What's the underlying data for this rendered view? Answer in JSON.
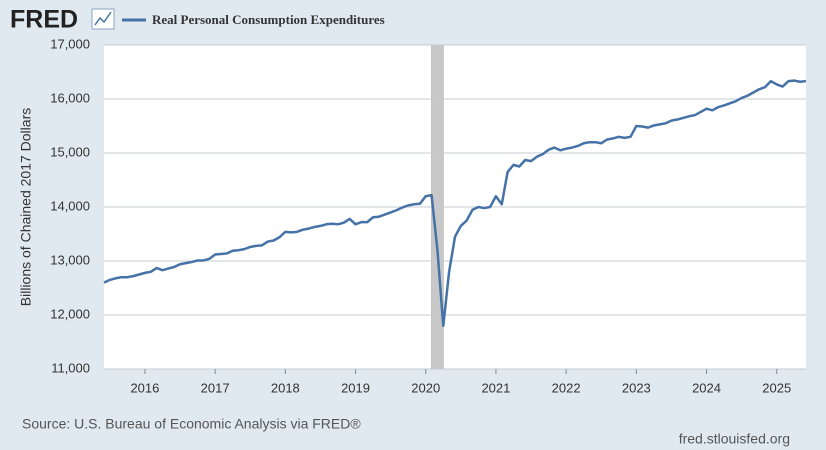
{
  "logo": "FRED",
  "chart_data": {
    "type": "line",
    "y_label": "Billions of Chained 2017 Dollars",
    "source": "Source: U.S. Bureau of Economic Analysis via FRED®",
    "site": "fred.stlouisfed.org",
    "shading": [
      [
        2020.083,
        2020.25
      ]
    ],
    "grid": true,
    "xlim": [
      2015.417,
      2025.417
    ],
    "xticks": [
      2016,
      2017,
      2018,
      2019,
      2020,
      2021,
      2022,
      2023,
      2024,
      2025
    ],
    "ylim": [
      11000,
      17000
    ],
    "yticks": [
      {
        "value": 11000,
        "label": "11,000"
      },
      {
        "value": 12000,
        "label": "12,000"
      },
      {
        "value": 13000,
        "label": "13,000"
      },
      {
        "value": 14000,
        "label": "14,000"
      },
      {
        "value": 15000,
        "label": "15,000"
      },
      {
        "value": 16000,
        "label": "16,000"
      },
      {
        "value": 17000,
        "label": "17,000"
      }
    ],
    "x": [
      2015.417,
      2015.5,
      2015.583,
      2015.667,
      2015.75,
      2015.833,
      2015.917,
      2016,
      2016.083,
      2016.167,
      2016.25,
      2016.333,
      2016.417,
      2016.5,
      2016.583,
      2016.667,
      2016.75,
      2016.833,
      2016.917,
      2017,
      2017.083,
      2017.167,
      2017.25,
      2017.333,
      2017.417,
      2017.5,
      2017.583,
      2017.667,
      2017.75,
      2017.833,
      2017.917,
      2018,
      2018.083,
      2018.167,
      2018.25,
      2018.333,
      2018.417,
      2018.5,
      2018.583,
      2018.667,
      2018.75,
      2018.833,
      2018.917,
      2019,
      2019.083,
      2019.167,
      2019.25,
      2019.333,
      2019.417,
      2019.5,
      2019.583,
      2019.667,
      2019.75,
      2019.833,
      2019.917,
      2020,
      2020.083,
      2020.167,
      2020.25,
      2020.333,
      2020.417,
      2020.5,
      2020.583,
      2020.667,
      2020.75,
      2020.833,
      2020.917,
      2021,
      2021.083,
      2021.167,
      2021.25,
      2021.333,
      2021.417,
      2021.5,
      2021.583,
      2021.667,
      2021.75,
      2021.833,
      2021.917,
      2022,
      2022.083,
      2022.167,
      2022.25,
      2022.333,
      2022.417,
      2022.5,
      2022.583,
      2022.667,
      2022.75,
      2022.833,
      2022.917,
      2023,
      2023.083,
      2023.167,
      2023.25,
      2023.333,
      2023.417,
      2023.5,
      2023.583,
      2023.667,
      2023.75,
      2023.833,
      2023.917,
      2024,
      2024.083,
      2024.167,
      2024.25,
      2024.333,
      2024.417,
      2024.5,
      2024.583,
      2024.667,
      2024.75,
      2024.833,
      2024.917,
      2025,
      2025.083,
      2025.167,
      2025.25,
      2025.333,
      2025.417
    ],
    "series": [
      {
        "name": "Real Personal Consumption Expenditures",
        "color": "#4572a7",
        "values": [
          12600,
          12650,
          12680,
          12700,
          12700,
          12720,
          12750,
          12780,
          12800,
          12870,
          12830,
          12860,
          12890,
          12940,
          12960,
          12980,
          13010,
          13010,
          13040,
          13120,
          13130,
          13140,
          13190,
          13200,
          13220,
          13260,
          13280,
          13290,
          13360,
          13380,
          13440,
          13540,
          13530,
          13540,
          13580,
          13600,
          13630,
          13650,
          13680,
          13690,
          13680,
          13710,
          13780,
          13680,
          13720,
          13720,
          13810,
          13820,
          13860,
          13900,
          13940,
          13990,
          14030,
          14050,
          14060,
          14200,
          14220,
          13200,
          11800,
          12800,
          13450,
          13650,
          13750,
          13950,
          14000,
          13980,
          14000,
          14200,
          14050,
          14650,
          14780,
          14750,
          14870,
          14850,
          14930,
          14980,
          15060,
          15100,
          15050,
          15080,
          15100,
          15130,
          15180,
          15200,
          15200,
          15180,
          15250,
          15270,
          15300,
          15280,
          15300,
          15500,
          15490,
          15470,
          15510,
          15530,
          15550,
          15600,
          15620,
          15650,
          15680,
          15700,
          15760,
          15820,
          15790,
          15850,
          15880,
          15920,
          15960,
          16020,
          16060,
          16120,
          16180,
          16220,
          16330,
          16270,
          16230,
          16330,
          16340,
          16320,
          16330
        ]
      }
    ]
  }
}
